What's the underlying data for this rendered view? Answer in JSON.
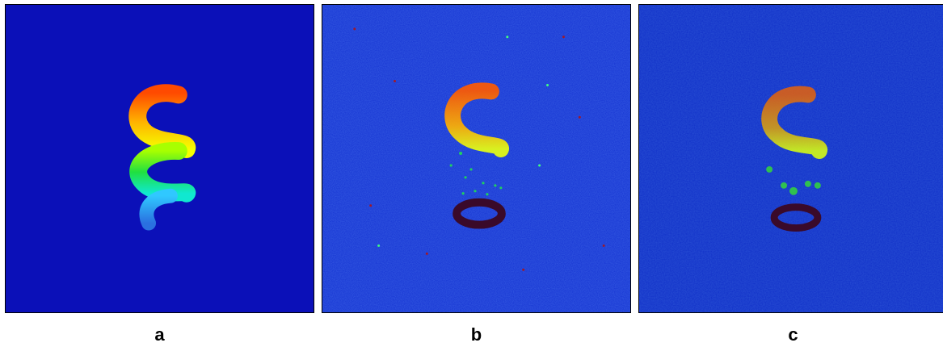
{
  "figure": {
    "panels": [
      {
        "label": "a",
        "description_color": "#0b10b8"
      },
      {
        "label": "b",
        "description_color": "#1432d2"
      },
      {
        "label": "c",
        "description_color": "#102fc8"
      }
    ]
  },
  "colors": {
    "background_a": "#0b10b8",
    "background_b": "#1432d2",
    "background_c": "#102fc8",
    "dark_ring": "#3a0a2a"
  }
}
